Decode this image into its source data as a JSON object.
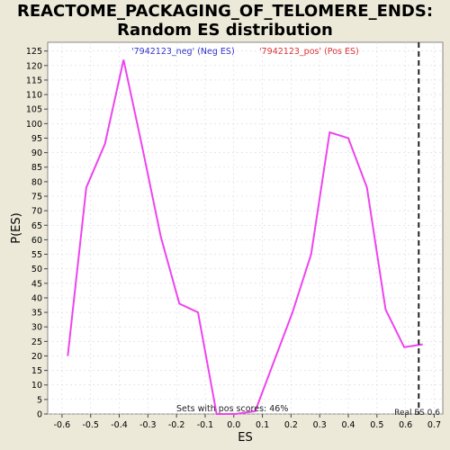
{
  "chart_data": {
    "type": "line",
    "title_line1": "REACTOME_PACKAGING_OF_TELOMERE_ENDS:",
    "title_line2": "Random ES distribution",
    "xlabel": "ES",
    "ylabel": "P(ES)",
    "xlim": [
      -0.65,
      0.73
    ],
    "ylim": [
      0,
      128
    ],
    "x_ticks": [
      -0.6,
      -0.5,
      -0.4,
      -0.3,
      -0.2,
      -0.1,
      0.0,
      0.1,
      0.2,
      0.3,
      0.4,
      0.5,
      0.6,
      0.7
    ],
    "x_tick_labels": [
      "-0.6",
      "-0.5",
      "-0.4",
      "-0.3",
      "-0.2",
      "-0.1",
      "0.0",
      "0.1",
      "0.2",
      "0.3",
      "0.4",
      "0.5",
      "0.6",
      "0.7"
    ],
    "y_ticks": [
      0,
      5,
      10,
      15,
      20,
      25,
      30,
      35,
      40,
      45,
      50,
      55,
      60,
      65,
      70,
      75,
      80,
      85,
      90,
      95,
      100,
      105,
      110,
      115,
      120,
      125
    ],
    "grid": true,
    "series": [
      {
        "color": "#ee44ee",
        "x": [
          -0.58,
          -0.515,
          -0.45,
          -0.385,
          -0.32,
          -0.255,
          -0.19,
          -0.125,
          -0.06,
          0.005,
          0.075,
          0.14,
          0.205,
          0.27,
          0.335,
          0.4,
          0.465,
          0.53,
          0.595,
          0.66
        ],
        "y": [
          20,
          78,
          93,
          122,
          92,
          61,
          38,
          35,
          0,
          0,
          1,
          18,
          35,
          55,
          97,
          95,
          78,
          36,
          23,
          24
        ]
      }
    ],
    "legend": [
      {
        "label": "'7942123_neg' (Neg ES)",
        "color": "#3333cc"
      },
      {
        "label": "'7942123_pos' (Pos ES)",
        "color": "#dd3333"
      }
    ],
    "real_es": {
      "value": 0.646,
      "label": "Real ES 0.6"
    },
    "annotation": "Sets with pos scores: 46%"
  },
  "colors": {
    "background": "#ece9d8",
    "plot_background": "#ffffff",
    "grid": "#d8d8e8",
    "line": "#ee44ee",
    "marker": "#222222"
  }
}
